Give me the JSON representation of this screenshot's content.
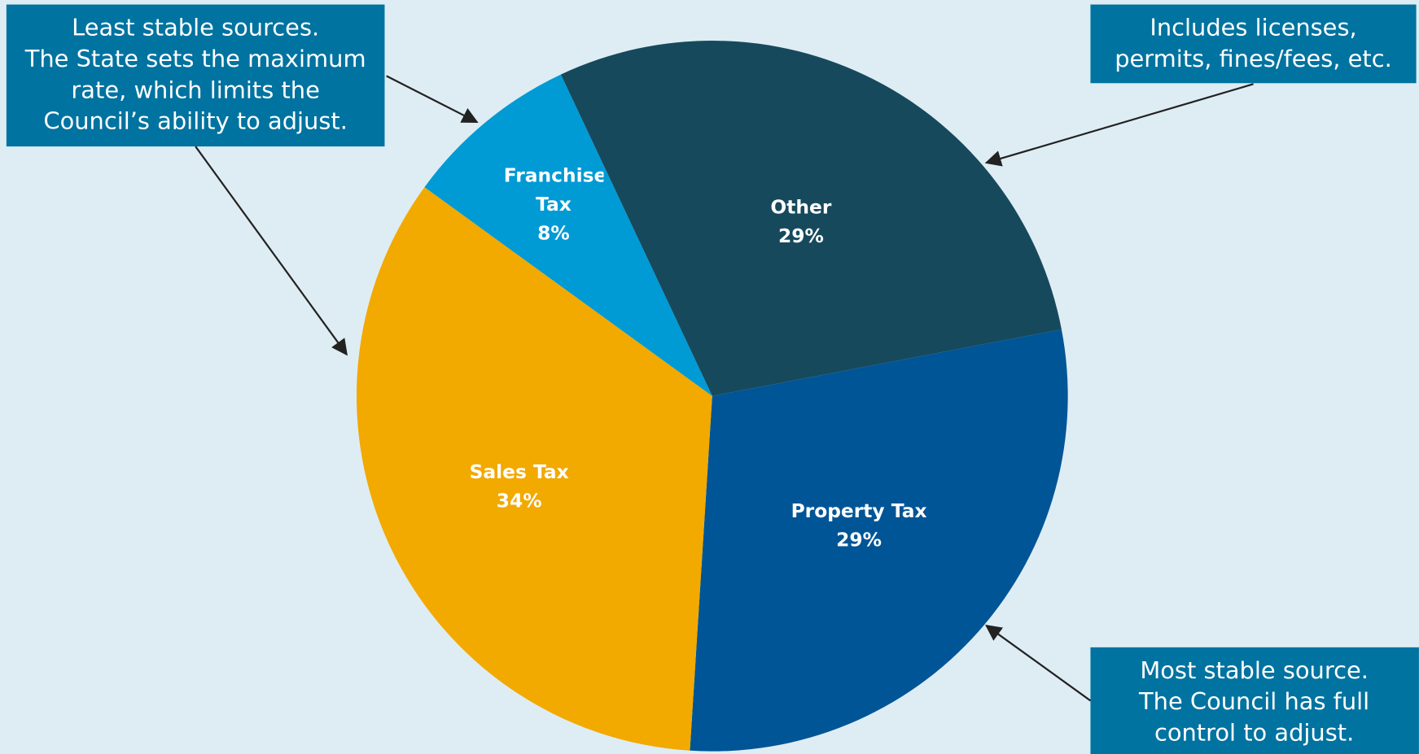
{
  "chart_data": {
    "type": "pie",
    "categories": [
      "Other",
      "Property Tax",
      "Sales Tax",
      "Franchise Tax"
    ],
    "values": [
      29,
      29,
      34,
      8
    ],
    "value_labels": [
      "29%",
      "29%",
      "34%",
      "8%"
    ],
    "colors": [
      "#17495d",
      "#005596",
      "#f2a900",
      "#009ad4"
    ],
    "annotations": [
      [
        "Least stable sources.",
        "The State sets the maximum",
        "rate, which limits the",
        "Council’s ability to adjust."
      ],
      [
        "Includes licenses,",
        "permits, fines/fees, etc."
      ],
      [
        "Most stable source.",
        "The Council has full",
        "control to adjust."
      ]
    ]
  }
}
